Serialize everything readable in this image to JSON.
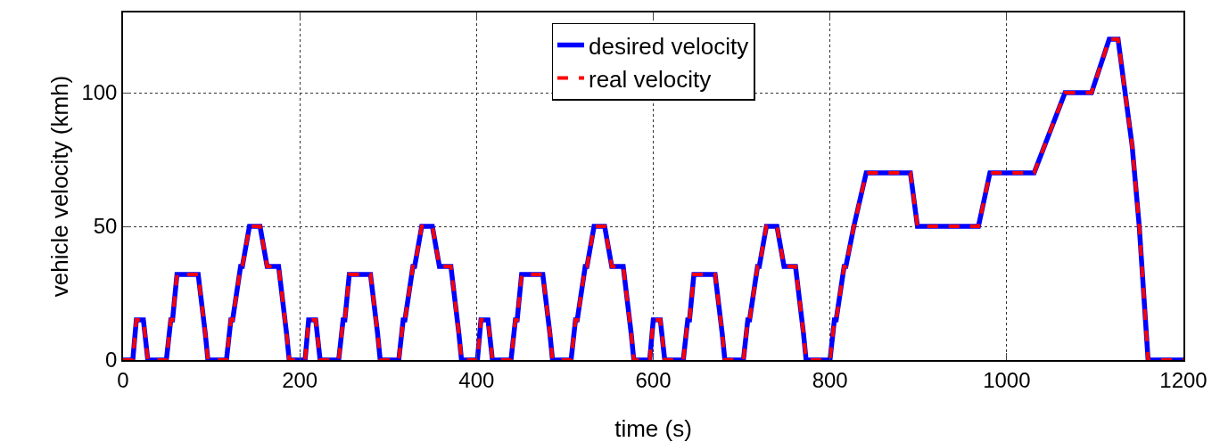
{
  "chart_data": {
    "type": "line",
    "xlabel": "time (s)",
    "ylabel": "vehicle velocity (kmh)",
    "xlim": [
      0,
      1200
    ],
    "xticks": [
      0,
      200,
      400,
      600,
      800,
      1000,
      1200
    ],
    "ylim": [
      0,
      130
    ],
    "yticks": [
      0,
      50,
      100
    ],
    "grid": true,
    "legend": "top",
    "marker": "none",
    "x": [
      0,
      11,
      15,
      23,
      28,
      49,
      54,
      56,
      61,
      85,
      93,
      96,
      117,
      122,
      124,
      133,
      135,
      143,
      155,
      163,
      176,
      185,
      188,
      195,
      206,
      210,
      218,
      223,
      244,
      249,
      251,
      256,
      280,
      288,
      291,
      312,
      317,
      319,
      328,
      330,
      338,
      350,
      358,
      371,
      380,
      383,
      390,
      401,
      405,
      413,
      418,
      439,
      444,
      446,
      451,
      475,
      483,
      486,
      507,
      512,
      514,
      523,
      525,
      533,
      545,
      553,
      566,
      575,
      578,
      585,
      596,
      600,
      608,
      613,
      634,
      639,
      641,
      646,
      670,
      678,
      681,
      702,
      707,
      709,
      718,
      720,
      728,
      740,
      748,
      761,
      770,
      773,
      800,
      805,
      807,
      816,
      818,
      827,
      841,
      891,
      899,
      968,
      981,
      1031,
      1066,
      1096,
      1116,
      1126,
      1142,
      1150,
      1160,
      1200
    ],
    "series": [
      {
        "name": "desired velocity",
        "color": "#0000ff",
        "line_style": "solid",
        "values": [
          0,
          0,
          15,
          15,
          0,
          0,
          15,
          15,
          32,
          32,
          10,
          0,
          0,
          15,
          15,
          35,
          35,
          50,
          50,
          35,
          35,
          10,
          0,
          0,
          0,
          15,
          15,
          0,
          0,
          15,
          15,
          32,
          32,
          10,
          0,
          0,
          15,
          15,
          35,
          35,
          50,
          50,
          35,
          35,
          10,
          0,
          0,
          0,
          15,
          15,
          0,
          0,
          15,
          15,
          32,
          32,
          10,
          0,
          0,
          15,
          15,
          35,
          35,
          50,
          50,
          35,
          35,
          10,
          0,
          0,
          0,
          15,
          15,
          0,
          0,
          15,
          15,
          32,
          32,
          10,
          0,
          0,
          15,
          15,
          35,
          35,
          50,
          50,
          35,
          35,
          10,
          0,
          0,
          15,
          15,
          35,
          35,
          50,
          70,
          70,
          50,
          50,
          70,
          70,
          100,
          100,
          120,
          120,
          80,
          50,
          0,
          0
        ]
      },
      {
        "name": "real velocity",
        "color": "#ff0000",
        "line_style": "dashed",
        "values": [
          0,
          0,
          15,
          15,
          0,
          0,
          15,
          15,
          32,
          32,
          10,
          0,
          0,
          15,
          15,
          35,
          35,
          50,
          50,
          35,
          35,
          10,
          0,
          0,
          0,
          15,
          15,
          0,
          0,
          15,
          15,
          32,
          32,
          10,
          0,
          0,
          15,
          15,
          35,
          35,
          50,
          50,
          35,
          35,
          10,
          0,
          0,
          0,
          15,
          15,
          0,
          0,
          15,
          15,
          32,
          32,
          10,
          0,
          0,
          15,
          15,
          35,
          35,
          50,
          50,
          35,
          35,
          10,
          0,
          0,
          0,
          15,
          15,
          0,
          0,
          15,
          15,
          32,
          32,
          10,
          0,
          0,
          15,
          15,
          35,
          35,
          50,
          50,
          35,
          35,
          10,
          0,
          0,
          15,
          15,
          35,
          35,
          50,
          70,
          70,
          50,
          50,
          70,
          70,
          100,
          100,
          120,
          120,
          80,
          50,
          0,
          0
        ]
      }
    ]
  }
}
